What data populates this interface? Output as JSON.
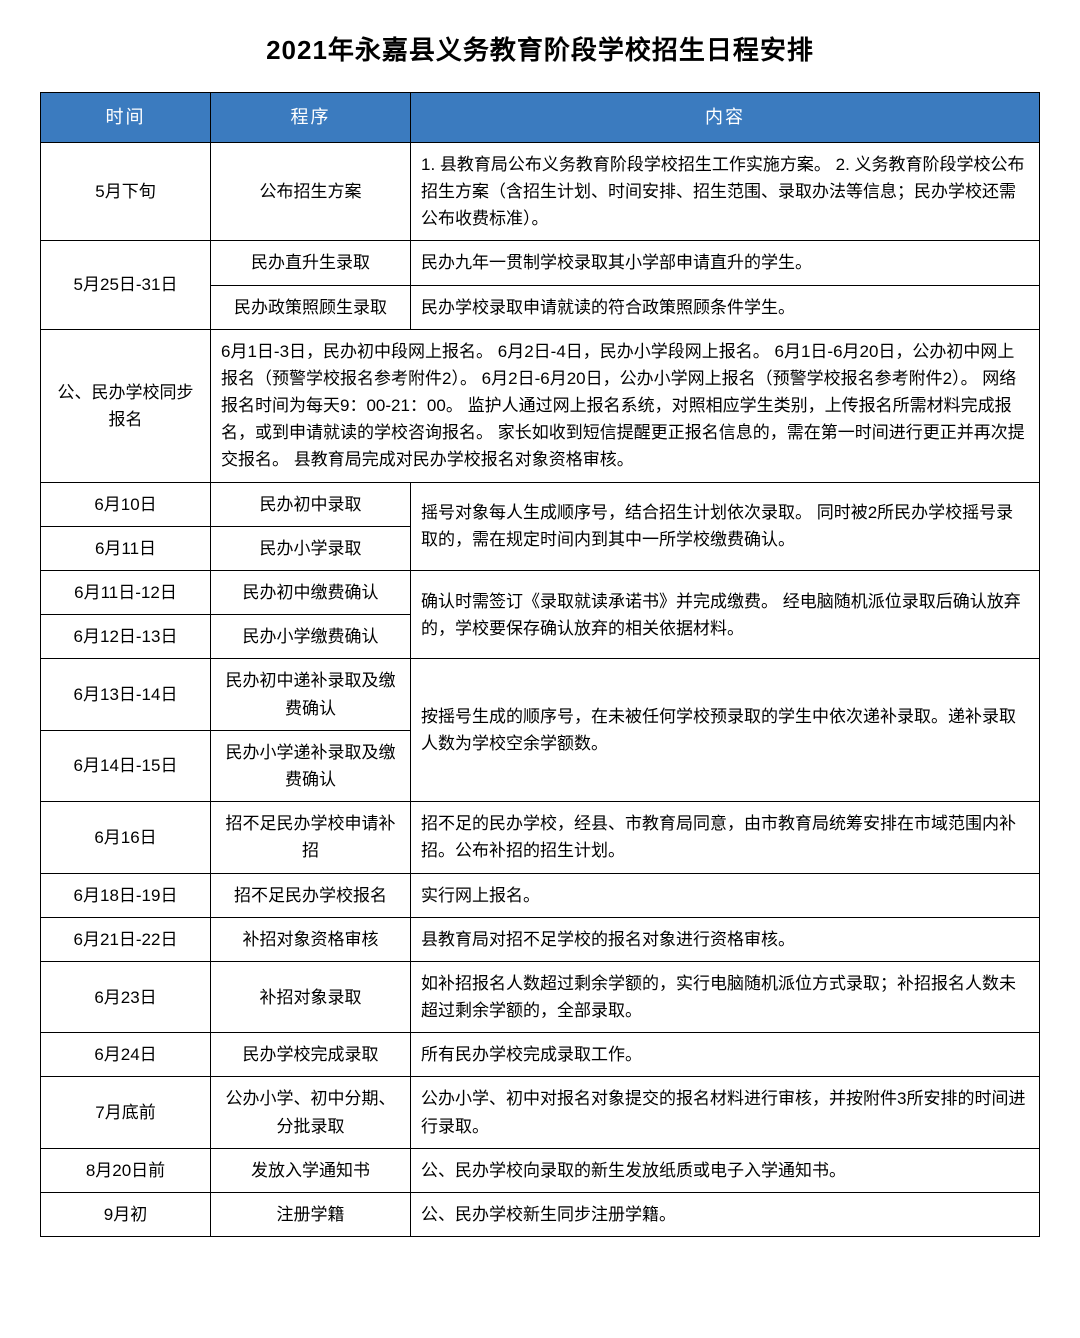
{
  "title": "2021年永嘉县义务教育阶段学校招生日程安排",
  "headers": {
    "time": "时间",
    "procedure": "程序",
    "content": "内容"
  },
  "colors": {
    "header_bg": "#3b7bbf",
    "header_text": "#ffffff",
    "border": "#000000",
    "text": "#000000",
    "background": "#ffffff"
  },
  "rows": {
    "r1": {
      "time": "5月下旬",
      "proc": "公布招生方案",
      "content": "1. 县教育局公布义务教育阶段学校招生工作实施方案。\n2. 义务教育阶段学校公布招生方案（含招生计划、时间安排、招生范围、录取办法等信息；民办学校还需公布收费标准）。"
    },
    "r2": {
      "time": "5月25日-31日",
      "proc_a": "民办直升生录取",
      "content_a": "民办九年一贯制学校录取其小学部申请直升的学生。",
      "proc_b": "民办政策照顾生录取",
      "content_b": "民办学校录取申请就读的符合政策照顾条件学生。"
    },
    "r3": {
      "time": "公、民办学校同步报名",
      "content": "6月1日-3日，民办初中段网上报名。\n6月2日-4日，民办小学段网上报名。\n6月1日-6月20日，公办初中网上报名（预警学校报名参考附件2）。\n6月2日-6月20日，公办小学网上报名（预警学校报名参考附件2）。\n网络报名时间为每天9：00-21：00。\n监护人通过网上报名系统，对照相应学生类别，上传报名所需材料完成报名，或到申请就读的学校咨询报名。\n家长如收到短信提醒更正报名信息的，需在第一时间进行更正并再次提交报名。\n县教育局完成对民办学校报名对象资格审核。"
    },
    "r4": {
      "time_a": "6月10日",
      "proc_a": "民办初中录取",
      "time_b": "6月11日",
      "proc_b": "民办小学录取",
      "content": "摇号对象每人生成顺序号，结合招生计划依次录取。\n同时被2所民办学校摇号录取的，需在规定时间内到其中一所学校缴费确认。"
    },
    "r5": {
      "time_a": "6月11日-12日",
      "proc_a": "民办初中缴费确认",
      "time_b": "6月12日-13日",
      "proc_b": "民办小学缴费确认",
      "content": "确认时需签订《录取就读承诺书》并完成缴费。\n经电脑随机派位录取后确认放弃的，学校要保存确认放弃的相关依据材料。"
    },
    "r6": {
      "time_a": "6月13日-14日",
      "proc_a": "民办初中递补录取及缴费确认",
      "time_b": "6月14日-15日",
      "proc_b": "民办小学递补录取及缴费确认",
      "content": "按摇号生成的顺序号，在未被任何学校预录取的学生中依次递补录取。递补录取人数为学校空余学额数。"
    },
    "r7": {
      "time": "6月16日",
      "proc": "招不足民办学校申请补招",
      "content": "招不足的民办学校，经县、市教育局同意，由市教育局统筹安排在市域范围内补招。公布补招的招生计划。"
    },
    "r8": {
      "time": "6月18日-19日",
      "proc": "招不足民办学校报名",
      "content": "实行网上报名。"
    },
    "r9": {
      "time": "6月21日-22日",
      "proc": "补招对象资格审核",
      "content": "县教育局对招不足学校的报名对象进行资格审核。"
    },
    "r10": {
      "time": "6月23日",
      "proc": "补招对象录取",
      "content": "如补招报名人数超过剩余学额的，实行电脑随机派位方式录取；补招报名人数未超过剩余学额的，全部录取。"
    },
    "r11": {
      "time": "6月24日",
      "proc": "民办学校完成录取",
      "content": "所有民办学校完成录取工作。"
    },
    "r12": {
      "time": "7月底前",
      "proc": "公办小学、初中分期、分批录取",
      "content": "公办小学、初中对报名对象提交的报名材料进行审核，并按附件3所安排的时间进行录取。"
    },
    "r13": {
      "time": "8月20日前",
      "proc": "发放入学通知书",
      "content": "公、民办学校向录取的新生发放纸质或电子入学通知书。"
    },
    "r14": {
      "time": "9月初",
      "proc": "注册学籍",
      "content": "公、民办学校新生同步注册学籍。"
    }
  }
}
